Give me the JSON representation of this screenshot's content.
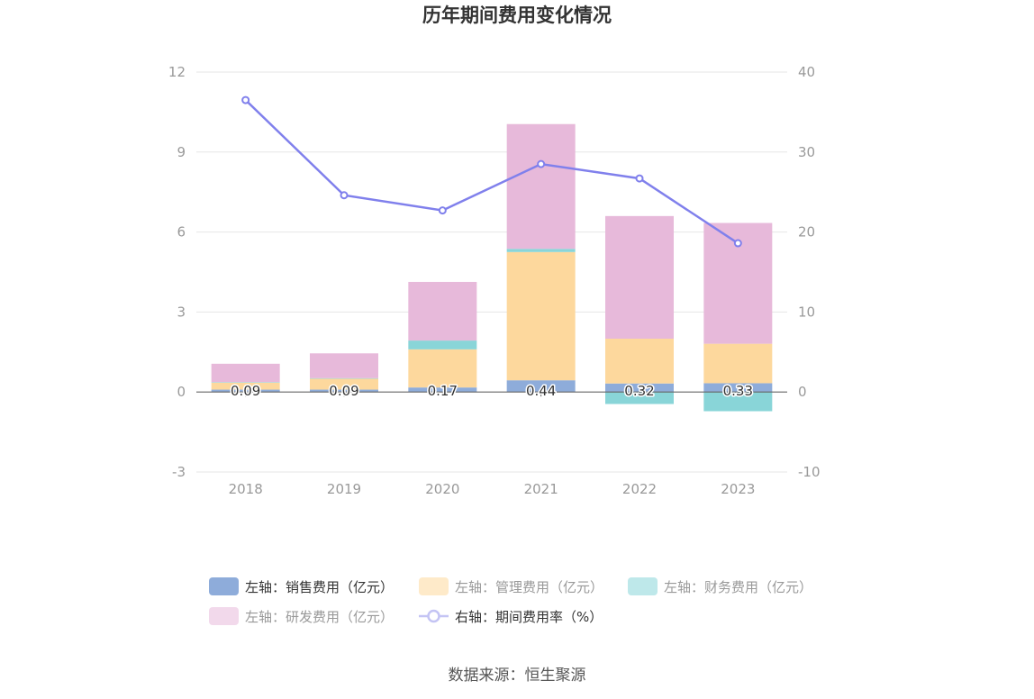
{
  "chart_data": {
    "type": "bar",
    "title": "历年期间费用变化情况",
    "categories": [
      "2018",
      "2019",
      "2020",
      "2021",
      "2022",
      "2023"
    ],
    "y_left": {
      "ticks": [
        -3,
        0,
        3,
        6,
        9,
        12
      ],
      "range": [
        -3,
        12
      ]
    },
    "y_right": {
      "ticks": [
        -10,
        0,
        10,
        20,
        30,
        40
      ],
      "range": [
        -10,
        40
      ]
    },
    "stacked": true,
    "series": [
      {
        "name": "左轴：销售费用（亿元）",
        "type": "bar",
        "axis": "left",
        "color": "#8eacda",
        "values": [
          0.09,
          0.09,
          0.17,
          0.44,
          0.32,
          0.33
        ],
        "show_labels": true
      },
      {
        "name": "左轴：管理费用（亿元）",
        "type": "bar",
        "axis": "left",
        "color": "#fdd89d",
        "values": [
          0.26,
          0.41,
          1.43,
          4.81,
          1.68,
          1.48
        ]
      },
      {
        "name": "左轴：财务费用（亿元）",
        "type": "bar",
        "axis": "left",
        "color": "#89d5d8",
        "values": [
          0.02,
          0.02,
          0.33,
          0.12,
          -0.45,
          -0.72
        ]
      },
      {
        "name": "左轴：研发费用（亿元）",
        "type": "bar",
        "axis": "left",
        "color": "#e7b9da",
        "values": [
          0.69,
          0.93,
          2.2,
          4.68,
          4.6,
          4.53
        ]
      },
      {
        "name": "右轴：期间费用率（%）",
        "type": "line",
        "axis": "right",
        "color": "#8080ec",
        "values": [
          36.5,
          24.6,
          22.7,
          28.5,
          26.7,
          18.6
        ]
      }
    ],
    "legend": {
      "position": "bottom",
      "dimmed": [
        1,
        2,
        3
      ]
    },
    "grid": true
  },
  "source_text": "数据来源：恒生聚源"
}
